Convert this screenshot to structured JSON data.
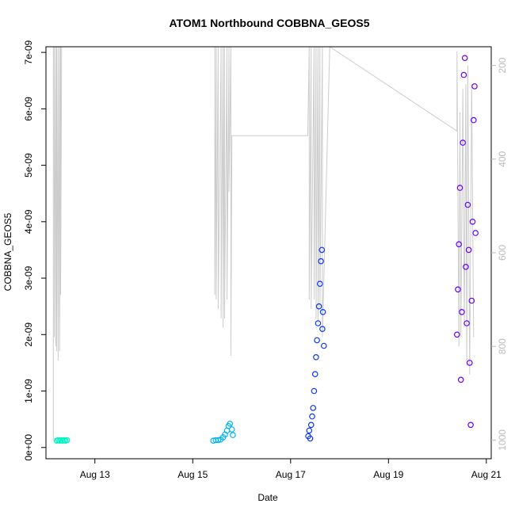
{
  "chart_data": {
    "type": "scatter",
    "title": "ATOM1 Northbound COBBNA_GEOS5",
    "xlabel": "Date",
    "ylabel": "COBBNA_GEOS5",
    "x_ticks": [
      "Aug 13",
      "Aug 15",
      "Aug 17",
      "Aug 19",
      "Aug 21"
    ],
    "x_tick_days": [
      13,
      15,
      17,
      19,
      21
    ],
    "xlim_days": [
      12.0,
      21.1
    ],
    "y_ticks": [
      "0e+00",
      "1e-09",
      "2e-09",
      "3e-09",
      "4e-09",
      "5e-09",
      "6e-09",
      "7e-09"
    ],
    "y_tick_values": [
      0,
      1e-09,
      2e-09,
      3e-09,
      4e-09,
      5e-09,
      6e-09,
      7e-09
    ],
    "ylim": [
      -2e-10,
      7.1e-09
    ],
    "y2_ticks": [
      "200",
      "400",
      "600",
      "800",
      "1000"
    ],
    "y2_tick_values": [
      200,
      400,
      600,
      800,
      1000
    ],
    "y2lim": [
      1040,
      160
    ],
    "y2_reversed": true,
    "series": [
      {
        "color": "#00f5c0",
        "points": [
          [
            12.22,
            1.2e-10
          ],
          [
            12.25,
            1.3e-10
          ],
          [
            12.28,
            1.2e-10
          ],
          [
            12.31,
            1.3e-10
          ],
          [
            12.34,
            1.2e-10
          ],
          [
            12.37,
            1.3e-10
          ],
          [
            12.4,
            1.2e-10
          ],
          [
            12.43,
            1.3e-10
          ]
        ]
      },
      {
        "color": "#00b4f0",
        "points": [
          [
            15.42,
            1.2e-10
          ],
          [
            15.47,
            1.3e-10
          ],
          [
            15.52,
            1.3e-10
          ],
          [
            15.57,
            1.4e-10
          ],
          [
            15.62,
            1.8e-10
          ],
          [
            15.66,
            2.3e-10
          ],
          [
            15.7,
            3e-10
          ],
          [
            15.73,
            3.8e-10
          ],
          [
            15.76,
            4.2e-10
          ],
          [
            15.8,
            3.2e-10
          ],
          [
            15.82,
            2.2e-10
          ]
        ]
      },
      {
        "color": "#0a37ff",
        "points": [
          [
            17.36,
            2e-10
          ],
          [
            17.38,
            3e-10
          ],
          [
            17.4,
            1.6e-10
          ],
          [
            17.42,
            4e-10
          ],
          [
            17.44,
            5.5e-10
          ],
          [
            17.46,
            7e-10
          ],
          [
            17.48,
            1e-09
          ],
          [
            17.5,
            1.3e-09
          ],
          [
            17.52,
            1.6e-09
          ],
          [
            17.54,
            1.9e-09
          ],
          [
            17.56,
            2.2e-09
          ],
          [
            17.58,
            2.5e-09
          ],
          [
            17.6,
            2.9e-09
          ],
          [
            17.62,
            3.3e-09
          ],
          [
            17.64,
            3.5e-09
          ],
          [
            17.65,
            2.1e-09
          ],
          [
            17.66,
            2.4e-09
          ],
          [
            17.68,
            1.8e-09
          ]
        ]
      },
      {
        "color": "#6a00ff",
        "points": [
          [
            20.4,
            2e-09
          ],
          [
            20.42,
            2.8e-09
          ],
          [
            20.44,
            3.6e-09
          ],
          [
            20.46,
            4.6e-09
          ],
          [
            20.48,
            1.2e-09
          ],
          [
            20.5,
            2.4e-09
          ],
          [
            20.52,
            5.4e-09
          ],
          [
            20.54,
            6.6e-09
          ],
          [
            20.56,
            6.9e-09
          ],
          [
            20.58,
            3.2e-09
          ],
          [
            20.6,
            2.2e-09
          ],
          [
            20.62,
            4.3e-09
          ],
          [
            20.64,
            3.5e-09
          ],
          [
            20.66,
            1.5e-09
          ],
          [
            20.68,
            4e-10
          ],
          [
            20.7,
            2.6e-09
          ],
          [
            20.72,
            4e-09
          ],
          [
            20.74,
            5.8e-09
          ],
          [
            20.76,
            6.4e-09
          ],
          [
            20.78,
            3.8e-09
          ]
        ]
      }
    ],
    "altitude_trace": {
      "color": "#cccccc",
      "points": [
        [
          12.15,
          1000
        ],
        [
          12.15,
          150
        ],
        [
          12.17,
          150
        ],
        [
          12.17,
          780
        ],
        [
          12.2,
          150
        ],
        [
          12.2,
          800
        ],
        [
          12.22,
          150
        ],
        [
          12.22,
          810
        ],
        [
          12.25,
          150
        ],
        [
          12.25,
          830
        ],
        [
          12.28,
          150
        ],
        [
          12.28,
          810
        ],
        [
          12.3,
          150
        ],
        [
          12.3,
          690
        ],
        [
          12.32,
          150
        ],
        [
          15.45,
          150
        ],
        [
          15.45,
          690
        ],
        [
          15.48,
          150
        ],
        [
          15.48,
          700
        ],
        [
          15.52,
          150
        ],
        [
          15.52,
          720
        ],
        [
          15.58,
          150
        ],
        [
          15.58,
          740
        ],
        [
          15.62,
          150
        ],
        [
          15.62,
          760
        ],
        [
          15.65,
          150
        ],
        [
          15.65,
          740
        ],
        [
          15.7,
          150
        ],
        [
          15.7,
          700
        ],
        [
          15.74,
          150
        ],
        [
          15.74,
          470
        ],
        [
          15.78,
          150
        ],
        [
          15.78,
          820
        ],
        [
          15.8,
          350
        ],
        [
          17.35,
          350
        ],
        [
          17.38,
          150
        ],
        [
          17.38,
          700
        ],
        [
          17.42,
          150
        ],
        [
          17.42,
          720
        ],
        [
          17.48,
          150
        ],
        [
          17.48,
          700
        ],
        [
          17.52,
          150
        ],
        [
          17.52,
          740
        ],
        [
          17.56,
          150
        ],
        [
          17.56,
          750
        ],
        [
          17.6,
          150
        ],
        [
          17.6,
          720
        ],
        [
          17.65,
          150
        ],
        [
          17.65,
          780
        ],
        [
          17.8,
          150
        ],
        [
          20.4,
          340
        ],
        [
          20.4,
          170
        ],
        [
          20.44,
          800
        ],
        [
          20.46,
          300
        ],
        [
          20.48,
          780
        ],
        [
          20.52,
          250
        ],
        [
          20.55,
          760
        ],
        [
          20.58,
          240
        ],
        [
          20.6,
          840
        ],
        [
          20.62,
          200
        ],
        [
          20.66,
          860
        ],
        [
          20.7,
          240
        ],
        [
          20.74,
          780
        ]
      ]
    }
  }
}
